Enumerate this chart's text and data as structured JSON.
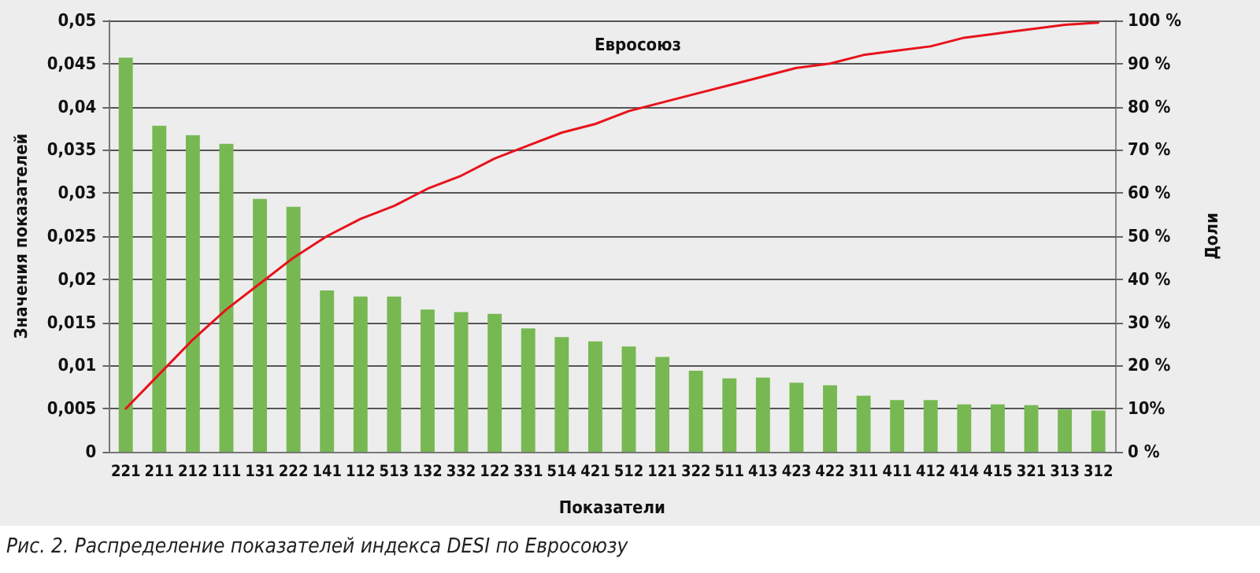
{
  "chart_data": {
    "type": "bar",
    "title": "Евросоюз",
    "xlabel": "Показатели",
    "ylabel": "Значения показателей",
    "y2label": "Доли",
    "annotations": [
      "Рис. 2. Распределение показателей индекса DESI по Евросоюзу"
    ],
    "categories": [
      "221",
      "211",
      "212",
      "111",
      "131",
      "222",
      "141",
      "112",
      "513",
      "132",
      "332",
      "122",
      "331",
      "514",
      "421",
      "512",
      "121",
      "322",
      "511",
      "413",
      "423",
      "422",
      "311",
      "411",
      "412",
      "414",
      "415",
      "321",
      "313",
      "312"
    ],
    "series": [
      {
        "color": "#77b852",
        "values": [
          0.0457,
          0.0378,
          0.0367,
          0.0357,
          0.0293,
          0.0284,
          0.0187,
          0.018,
          0.018,
          0.0165,
          0.0162,
          0.016,
          0.0143,
          0.0133,
          0.0128,
          0.0122,
          0.011,
          0.0094,
          0.0085,
          0.0086,
          0.008,
          0.0077,
          0.0065,
          0.006,
          0.006,
          0.0055,
          0.0055,
          0.0054,
          0.0049,
          0.0048
        ]
      },
      {
        "type": "line",
        "axis": "y2",
        "color": "#e8121b",
        "values": [
          10,
          18,
          26,
          33,
          39,
          45,
          50,
          54,
          57,
          61,
          64,
          68,
          71,
          74,
          76,
          79,
          81,
          83,
          85,
          87,
          89,
          90,
          92,
          93,
          94,
          96,
          97,
          98,
          99,
          99.5
        ]
      }
    ],
    "ylim": [
      0,
      0.05
    ],
    "yticks": [
      {
        "value": 0,
        "label": "0"
      },
      {
        "value": 0.005,
        "label": "0,005"
      },
      {
        "value": 0.01,
        "label": "0,01"
      },
      {
        "value": 0.015,
        "label": "0,015"
      },
      {
        "value": 0.02,
        "label": "0,02"
      },
      {
        "value": 0.025,
        "label": "0,025"
      },
      {
        "value": 0.03,
        "label": "0,03"
      },
      {
        "value": 0.035,
        "label": "0,035"
      },
      {
        "value": 0.04,
        "label": "0,04"
      },
      {
        "value": 0.045,
        "label": "0,045"
      },
      {
        "value": 0.05,
        "label": "0,05"
      }
    ],
    "y2lim": [
      0,
      100
    ],
    "y2ticks": [
      {
        "value": 0,
        "label": "0 %"
      },
      {
        "value": 10,
        "label": "10%"
      },
      {
        "value": 20,
        "label": "20 %"
      },
      {
        "value": 30,
        "label": "30 %"
      },
      {
        "value": 40,
        "label": "40 %"
      },
      {
        "value": 50,
        "label": "50 %"
      },
      {
        "value": 60,
        "label": "60 %"
      },
      {
        "value": 70,
        "label": "70 %"
      },
      {
        "value": 80,
        "label": "80 %"
      },
      {
        "value": 90,
        "label": "90 %"
      },
      {
        "value": 100,
        "label": "100 %"
      }
    ],
    "grid": "y",
    "marker": "none",
    "line_style": "solid"
  }
}
